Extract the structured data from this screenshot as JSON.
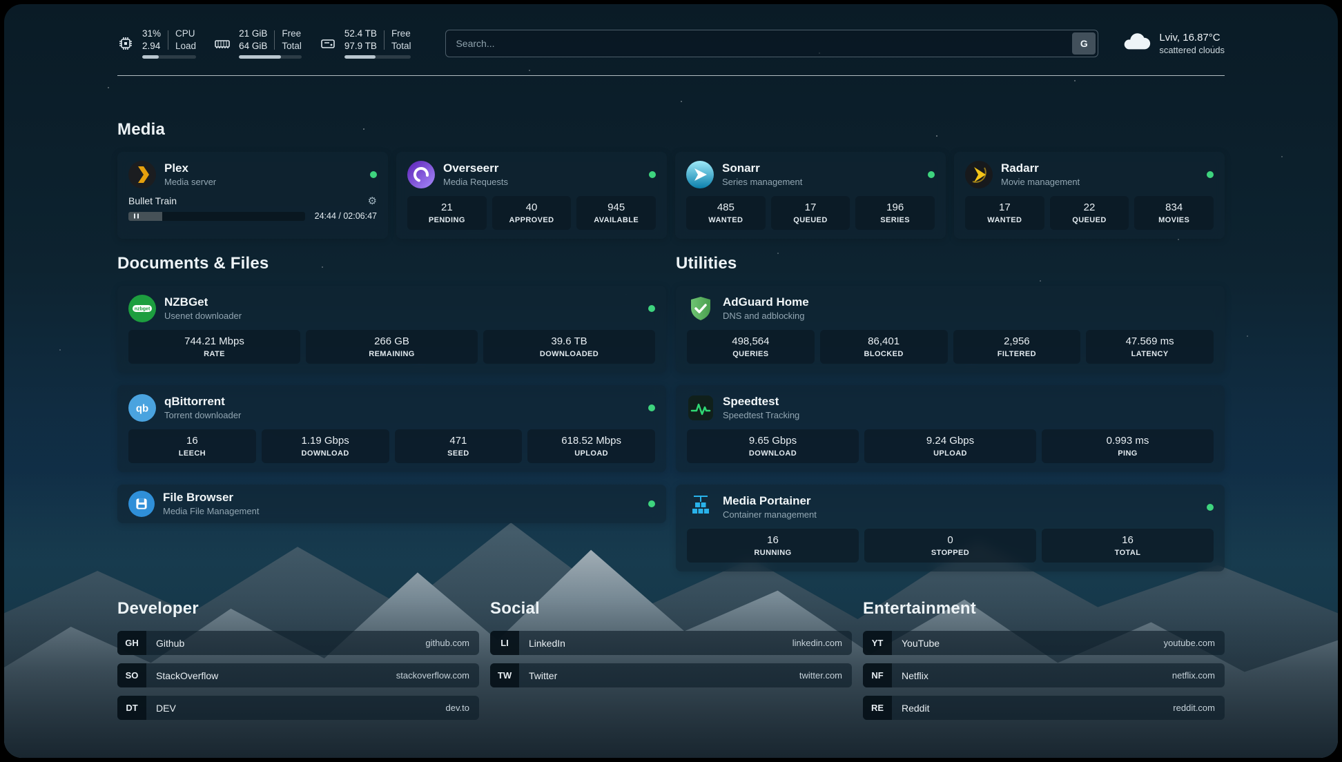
{
  "colors": {
    "status-online": "#3ed47e",
    "plex-accent": "#e5a00d",
    "overseerr-accent": "#7c5cfa",
    "sonarr-accent": "#35c5f4",
    "radarr-accent": "#f5c518",
    "nzbget-accent": "#1d9e3f",
    "qbittorrent-accent": "#4aa3df",
    "filebrowser-accent": "#2f8fd8",
    "adguard-accent": "#57b25c",
    "speedtest-accent": "#2fd974",
    "portainer-accent": "#29b2ea"
  },
  "icons": {
    "gear": "⚙"
  },
  "topbar": {
    "cpu": {
      "value_top": "31%",
      "value_bottom": "2.94",
      "label_top": "CPU",
      "label_bottom": "Load",
      "bar_percent": 31
    },
    "ram": {
      "value_top": "21 GiB",
      "value_bottom": "64 GiB",
      "label_top": "Free",
      "label_bottom": "Total",
      "bar_percent": 67
    },
    "disk": {
      "value_top": "52.4 TB",
      "value_bottom": "97.9 TB",
      "label_top": "Free",
      "label_bottom": "Total",
      "bar_percent": 47
    },
    "search": {
      "placeholder": "Search...",
      "engine_button": "G"
    },
    "weather": {
      "location": "Lviv, 16.87°C",
      "condition": "scattered clouds"
    }
  },
  "sections": {
    "media": "Media",
    "documents": "Documents & Files",
    "utilities": "Utilities",
    "developer": "Developer",
    "social": "Social",
    "entertainment": "Entertainment"
  },
  "apps": {
    "plex": {
      "name": "Plex",
      "subtitle": "Media server",
      "now_playing": "Bullet Train",
      "elapsed_total": "24:44 / 02:06:47",
      "progress_percent": 19
    },
    "overseerr": {
      "name": "Overseerr",
      "subtitle": "Media Requests",
      "stats": [
        {
          "value": "21",
          "label": "PENDING"
        },
        {
          "value": "40",
          "label": "APPROVED"
        },
        {
          "value": "945",
          "label": "AVAILABLE"
        }
      ]
    },
    "sonarr": {
      "name": "Sonarr",
      "subtitle": "Series management",
      "stats": [
        {
          "value": "485",
          "label": "WANTED"
        },
        {
          "value": "17",
          "label": "QUEUED"
        },
        {
          "value": "196",
          "label": "SERIES"
        }
      ]
    },
    "radarr": {
      "name": "Radarr",
      "subtitle": "Movie management",
      "stats": [
        {
          "value": "17",
          "label": "WANTED"
        },
        {
          "value": "22",
          "label": "QUEUED"
        },
        {
          "value": "834",
          "label": "MOVIES"
        }
      ]
    },
    "nzbget": {
      "name": "NZBGet",
      "subtitle": "Usenet downloader",
      "stats": [
        {
          "value": "744.21 Mbps",
          "label": "RATE"
        },
        {
          "value": "266 GB",
          "label": "REMAINING"
        },
        {
          "value": "39.6 TB",
          "label": "DOWNLOADED"
        }
      ]
    },
    "qbittorrent": {
      "name": "qBittorrent",
      "subtitle": "Torrent downloader",
      "stats": [
        {
          "value": "16",
          "label": "LEECH"
        },
        {
          "value": "1.19 Gbps",
          "label": "DOWNLOAD"
        },
        {
          "value": "471",
          "label": "SEED"
        },
        {
          "value": "618.52 Mbps",
          "label": "UPLOAD"
        }
      ]
    },
    "filebrowser": {
      "name": "File Browser",
      "subtitle": "Media File Management"
    },
    "adguard": {
      "name": "AdGuard Home",
      "subtitle": "DNS and adblocking",
      "stats": [
        {
          "value": "498,564",
          "label": "QUERIES"
        },
        {
          "value": "86,401",
          "label": "BLOCKED"
        },
        {
          "value": "2,956",
          "label": "FILTERED"
        },
        {
          "value": "47.569 ms",
          "label": "LATENCY"
        }
      ]
    },
    "speedtest": {
      "name": "Speedtest",
      "subtitle": "Speedtest Tracking",
      "stats": [
        {
          "value": "9.65 Gbps",
          "label": "DOWNLOAD"
        },
        {
          "value": "9.24 Gbps",
          "label": "UPLOAD"
        },
        {
          "value": "0.993 ms",
          "label": "PING"
        }
      ]
    },
    "portainer": {
      "name": "Media Portainer",
      "subtitle": "Container management",
      "stats": [
        {
          "value": "16",
          "label": "RUNNING"
        },
        {
          "value": "0",
          "label": "STOPPED"
        },
        {
          "value": "16",
          "label": "TOTAL"
        }
      ]
    }
  },
  "bookmarks": {
    "developer": [
      {
        "abbr": "GH",
        "name": "Github",
        "url": "github.com"
      },
      {
        "abbr": "SO",
        "name": "StackOverflow",
        "url": "stackoverflow.com"
      },
      {
        "abbr": "DT",
        "name": "DEV",
        "url": "dev.to"
      }
    ],
    "social": [
      {
        "abbr": "LI",
        "name": "LinkedIn",
        "url": "linkedin.com"
      },
      {
        "abbr": "TW",
        "name": "Twitter",
        "url": "twitter.com"
      }
    ],
    "entertainment": [
      {
        "abbr": "YT",
        "name": "YouTube",
        "url": "youtube.com"
      },
      {
        "abbr": "NF",
        "name": "Netflix",
        "url": "netflix.com"
      },
      {
        "abbr": "RE",
        "name": "Reddit",
        "url": "reddit.com"
      }
    ]
  }
}
